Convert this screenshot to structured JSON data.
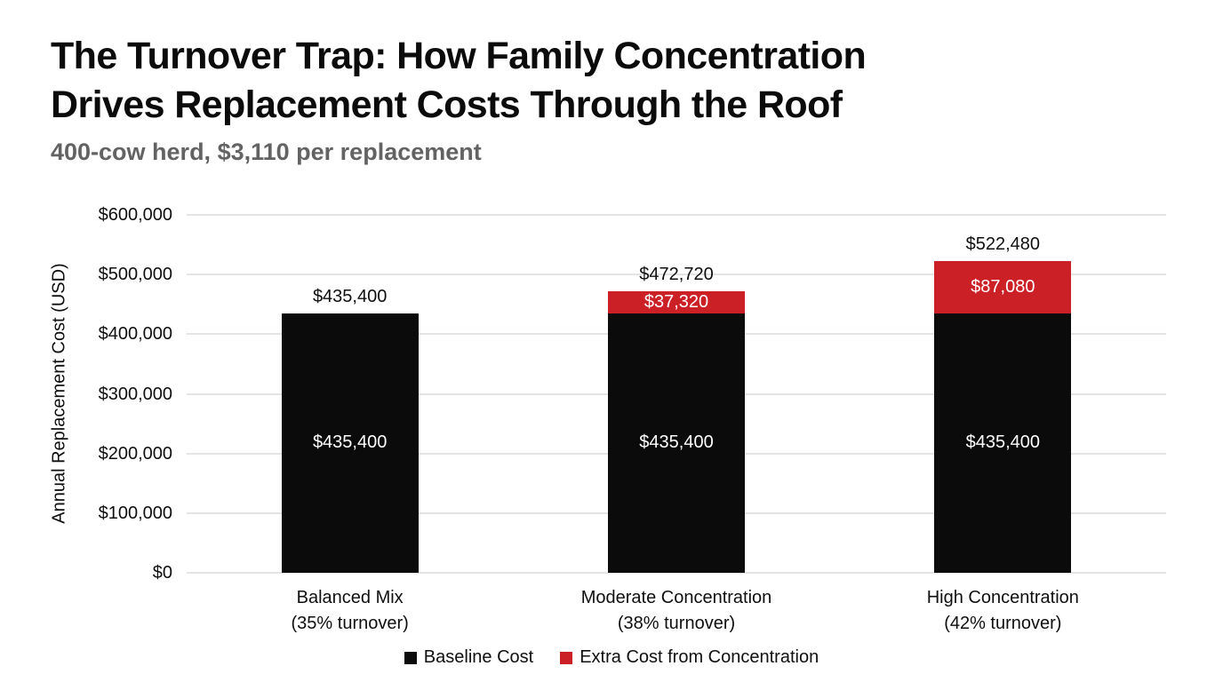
{
  "header": {
    "title_lines": [
      "The Turnover Trap: How Family Concentration",
      "Drives Replacement Costs Through the Roof"
    ],
    "subtitle": "400-cow herd, $3,110 per replacement"
  },
  "colors": {
    "baseline_bar": "#0b0b0b",
    "extra_bar": "#cc2027",
    "bar_label_text": "#ffffff",
    "gridline": "#e4e4e4",
    "axis_text": "#0f0f0f",
    "subtitle_text": "#636363"
  },
  "chart_data": {
    "type": "bar",
    "stacked": true,
    "title": "The Turnover Trap: How Family Concentration Drives Replacement Costs Through the Roof",
    "subtitle": "400-cow herd, $3,110 per replacement",
    "xlabel": "",
    "ylabel": "Annual Replacement Cost (USD)",
    "ylim": [
      0,
      600000
    ],
    "grid": true,
    "legend_position": "bottom",
    "yticks": [
      {
        "value": 0,
        "label": "$0"
      },
      {
        "value": 100000,
        "label": "$100,000"
      },
      {
        "value": 200000,
        "label": "$200,000"
      },
      {
        "value": 300000,
        "label": "$300,000"
      },
      {
        "value": 400000,
        "label": "$400,000"
      },
      {
        "value": 500000,
        "label": "$500,000"
      },
      {
        "value": 600000,
        "label": "$600,000"
      }
    ],
    "categories": [
      {
        "lines": [
          "Balanced Mix",
          "(35% turnover)"
        ]
      },
      {
        "lines": [
          "Moderate Concentration",
          "(38% turnover)"
        ]
      },
      {
        "lines": [
          "High Concentration",
          "(42% turnover)"
        ]
      }
    ],
    "series": [
      {
        "name": "Baseline Cost",
        "color": "#0b0b0b",
        "text_color": "#ffffff",
        "values": [
          435400,
          435400,
          435400
        ],
        "value_labels": [
          "$435,400",
          "$435,400",
          "$435,400"
        ]
      },
      {
        "name": "Extra Cost from Concentration",
        "color": "#cc2027",
        "text_color": "#ffffff",
        "values": [
          0,
          37320,
          87080
        ],
        "value_labels": [
          "",
          "$37,320",
          "$87,080"
        ]
      }
    ],
    "totals": [
      {
        "value": 435400,
        "label": "$435,400"
      },
      {
        "value": 472720,
        "label": "$472,720"
      },
      {
        "value": 522480,
        "label": "$522,480"
      }
    ]
  }
}
